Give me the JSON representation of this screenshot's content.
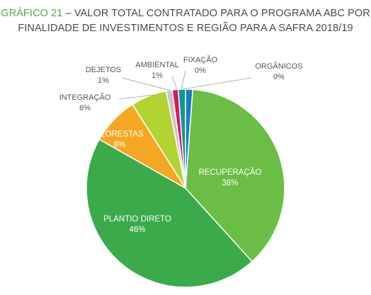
{
  "title": {
    "lead": "GRÁFICO 21",
    "line1_rest": " – VALOR TOTAL CONTRATADO PARA O PROGRAMA ABC POR",
    "line2": "FINALIDADE DE INVESTIMENTOS E REGIÃO PARA A SAFRA 2018/19"
  },
  "chart_data": {
    "type": "pie",
    "title": "GRÁFICO 21 – VALOR TOTAL CONTRATADO PARA O PROGRAMA ABC POR FINALIDADE DE INVESTIMENTOS E REGIÃO PARA A SAFRA 2018/19",
    "slices": [
      {
        "name": "ORGÂNICOS",
        "value": 0,
        "label": "0%",
        "color": "#1b7fc1"
      },
      {
        "name": "RECUPERAÇÃO",
        "value": 38,
        "label": "38%",
        "color": "#6cbd45"
      },
      {
        "name": "PLANTIO DIRETO",
        "value": 46,
        "label": "46%",
        "color": "#3aaa4a"
      },
      {
        "name": "FLORESTAS",
        "value": 8,
        "label": "8%",
        "color": "#f5a623"
      },
      {
        "name": "INTEGRAÇÃO",
        "value": 6,
        "label": "6%",
        "color": "#b3d334"
      },
      {
        "name": "DEJETOS",
        "value": 1,
        "label": "1%",
        "color": "#c8c8c8"
      },
      {
        "name": "AMBIENTAL",
        "value": 1,
        "label": "1%",
        "color": "#d6195b"
      },
      {
        "name": "FIXAÇÃO",
        "value": 0,
        "label": "0%",
        "color": "#0e9a8f"
      }
    ]
  }
}
